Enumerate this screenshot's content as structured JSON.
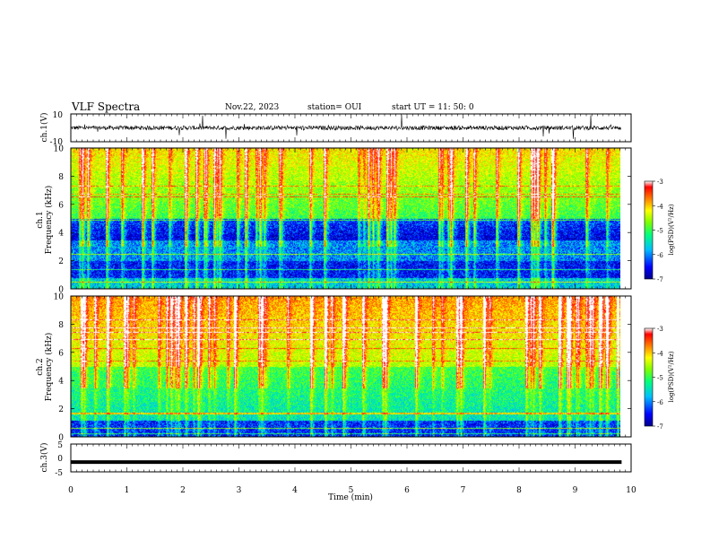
{
  "header": {
    "title": "VLF Spectra",
    "date": "Nov.22, 2023",
    "station": "station= OUI",
    "start": "start UT =  11: 50: 0"
  },
  "chart_data": [
    {
      "type": "line",
      "panel": "ch1-waveform",
      "ylabel": "ch.1(V)",
      "ylim": [
        -10,
        10
      ],
      "yticks": [
        "10",
        "-10"
      ],
      "baseline": 0,
      "amplitude_typical": 1.5,
      "color": "#000000"
    },
    {
      "type": "heatmap",
      "panel": "ch1-spectrogram",
      "ylabel_top": "ch.1",
      "ylabel": "Frequency (kHz)",
      "ylim": [
        0,
        10
      ],
      "yticks": [
        "0",
        "2",
        "4",
        "6",
        "8",
        "10"
      ],
      "colorbar": {
        "label": "log(PSD)(V²/Hz)",
        "range": [
          -7,
          -3
        ],
        "ticks": [
          "-3",
          "-4",
          "-5",
          "-6",
          "-7"
        ]
      }
    },
    {
      "type": "heatmap",
      "panel": "ch2-spectrogram",
      "ylabel_top": "ch.2",
      "ylabel": "Frequency (kHz)",
      "ylim": [
        0,
        10
      ],
      "yticks": [
        "0",
        "2",
        "4",
        "6",
        "8",
        "10"
      ],
      "colorbar": {
        "label": "log(PSD)(V²/Hz)",
        "range": [
          -7,
          -3
        ],
        "ticks": [
          "-3",
          "-4",
          "-5",
          "-6",
          "-7"
        ]
      }
    },
    {
      "type": "line",
      "panel": "ch3-waveform",
      "ylabel": "ch.3(V)",
      "ylim": [
        -5,
        5
      ],
      "yticks": [
        "5",
        "0",
        "-5"
      ],
      "value": -1.5,
      "color": "#000000"
    }
  ],
  "x_axis": {
    "label": "Time (min)",
    "range": [
      0,
      10
    ],
    "data_end": 9.83,
    "ticks": [
      "0",
      "1",
      "2",
      "3",
      "4",
      "5",
      "6",
      "7",
      "8",
      "9",
      "10"
    ]
  },
  "colors": {
    "colormap": [
      "#00008b",
      "#0000ff",
      "#00bfff",
      "#00ff7f",
      "#7fff00",
      "#ffff00",
      "#ff7f00",
      "#ff0000",
      "#ffffff"
    ]
  }
}
